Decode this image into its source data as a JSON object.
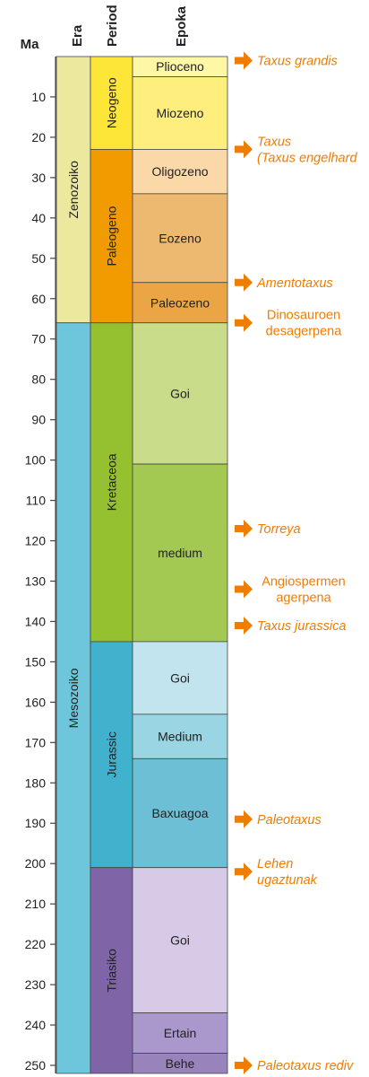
{
  "headers": {
    "ma": "Ma",
    "era": "Era",
    "period": "Period",
    "epoch": "Epoka"
  },
  "axis": {
    "min": 0,
    "max": 252,
    "ticks": [
      10,
      20,
      30,
      40,
      50,
      60,
      70,
      80,
      90,
      100,
      110,
      120,
      130,
      140,
      150,
      160,
      170,
      180,
      190,
      200,
      210,
      220,
      230,
      240,
      250
    ]
  },
  "eras": [
    {
      "name": "Zenozoiko",
      "start": 0,
      "end": 66,
      "color": "#ece89e"
    },
    {
      "name": "Mesozoiko",
      "start": 66,
      "end": 252,
      "color": "#6ec6dc"
    }
  ],
  "periods": [
    {
      "name": "Neogeno",
      "start": 0,
      "end": 23,
      "color": "#fde637"
    },
    {
      "name": "Paleogeno",
      "start": 23,
      "end": 66,
      "color": "#f29b00"
    },
    {
      "name": "Kretaceoa",
      "start": 66,
      "end": 145,
      "color": "#95c131"
    },
    {
      "name": "Jurassic",
      "start": 145,
      "end": 201,
      "color": "#40b2cd"
    },
    {
      "name": "Triasiko",
      "start": 201,
      "end": 252,
      "color": "#7f64a7"
    }
  ],
  "epochs": [
    {
      "name": "Plioceno",
      "start": 0,
      "end": 5,
      "color": "#fef7a6"
    },
    {
      "name": "Miozeno",
      "start": 5,
      "end": 23,
      "color": "#fdee7e"
    },
    {
      "name": "Oligozeno",
      "start": 23,
      "end": 34,
      "color": "#fbd8a8"
    },
    {
      "name": "Eozeno",
      "start": 34,
      "end": 56,
      "color": "#edb870"
    },
    {
      "name": "Paleozeno",
      "start": 56,
      "end": 66,
      "color": "#eba545"
    },
    {
      "name": "Goi",
      "start": 66,
      "end": 101,
      "color": "#c8dc8a"
    },
    {
      "name": "medium",
      "start": 101,
      "end": 145,
      "color": "#a3c953"
    },
    {
      "name": "Goi",
      "start": 145,
      "end": 163,
      "color": "#c2e4ee"
    },
    {
      "name": "Medium",
      "start": 163,
      "end": 174,
      "color": "#9ad5e4"
    },
    {
      "name": "Baxuagoa",
      "start": 174,
      "end": 201,
      "color": "#6cbfd4"
    },
    {
      "name": "Goi",
      "start": 201,
      "end": 237,
      "color": "#d6cae6"
    },
    {
      "name": "Ertain",
      "start": 237,
      "end": 247,
      "color": "#aa98cd"
    },
    {
      "name": "Behe",
      "start": 247,
      "end": 252,
      "color": "#9883bb"
    }
  ],
  "events": [
    {
      "age": 1,
      "lines": [
        "Taxus grandis"
      ],
      "italic": true
    },
    {
      "age": 23,
      "lines": [
        "Taxus",
        "(Taxus engelhard"
      ],
      "italic": true
    },
    {
      "age": 56,
      "lines": [
        "Amentotaxus"
      ],
      "italic": true
    },
    {
      "age": 66,
      "lines": [
        "Dinosauroen",
        "desagerpena"
      ],
      "italic": false
    },
    {
      "age": 117,
      "lines": [
        "Torreya"
      ],
      "italic": true
    },
    {
      "age": 132,
      "lines": [
        "Angiospermen",
        "agerpena"
      ],
      "italic": false
    },
    {
      "age": 141,
      "lines": [
        "Taxus jurassica"
      ],
      "italic": true
    },
    {
      "age": 189,
      "lines": [
        "Paleotaxus"
      ],
      "italic": true
    },
    {
      "age": 202,
      "lines": [
        "Lehen",
        "ugaztunak"
      ],
      "italic": true
    },
    {
      "age": 250,
      "lines": [
        "Paleotaxus rediv"
      ],
      "italic": true
    }
  ],
  "colors": {
    "event": "#ef7d00",
    "border": "#444444"
  }
}
